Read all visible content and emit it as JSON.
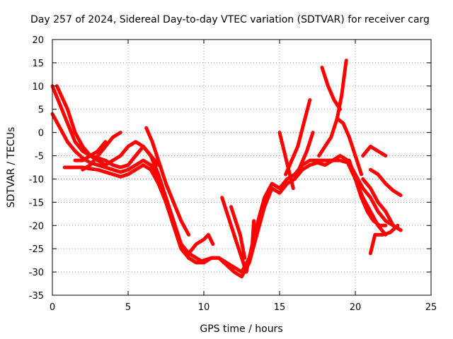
{
  "chart_data": {
    "type": "line",
    "title": "Day 257 of 2024, Sidereal Day-to-day VTEC variation (SDTVAR) for receiver carg",
    "xlabel": "GPS time / hours",
    "ylabel": "SDTVAR / TECUs",
    "xlim": [
      0,
      25
    ],
    "ylim": [
      -35,
      20
    ],
    "xticks": [
      0,
      5,
      10,
      15,
      20,
      25
    ],
    "yticks": [
      -35,
      -30,
      -25,
      -20,
      -15,
      -10,
      -5,
      0,
      5,
      10,
      15,
      20
    ],
    "grid": true,
    "color": "#ff0000",
    "series": [
      {
        "name": "s1",
        "x": [
          0.0,
          0.5,
          1.0,
          1.5,
          2.0,
          2.5,
          3.0,
          3.5,
          4.0,
          4.5,
          5.0,
          5.5,
          6.0,
          6.5,
          7.0,
          7.5,
          8.0,
          8.5,
          9.0,
          9.5,
          10.0,
          10.5,
          11.0,
          11.5,
          12.0,
          12.5,
          13.0,
          13.5,
          14.0,
          14.5,
          15.0,
          15.5,
          16.0,
          16.5,
          17.0,
          17.5,
          18.0,
          18.5,
          19.0,
          19.5,
          20.0,
          20.5,
          21.0,
          21.5,
          22.0,
          22.5,
          23.0
        ],
        "y": [
          10,
          6,
          2,
          -2,
          -4,
          -5,
          -5.5,
          -6,
          -7,
          -7.5,
          -7,
          -5,
          -3,
          -5,
          -9,
          -14,
          -19,
          -24,
          -27,
          -28,
          -27.5,
          -27,
          -27,
          -28,
          -29,
          -30,
          -27,
          -20,
          -14,
          -11,
          -12,
          -10,
          -9,
          -7,
          -6,
          -6,
          -6,
          -6,
          -5,
          -6,
          -9,
          -12,
          -14,
          -17,
          -19,
          -20,
          -21
        ]
      },
      {
        "name": "s2",
        "x": [
          0.0,
          0.5,
          1.0,
          1.5,
          2.0,
          2.5,
          3.0,
          3.5,
          4.0,
          4.5,
          5.0,
          5.5,
          6.0,
          6.5,
          7.0,
          7.5,
          8.0,
          8.5,
          9.0,
          9.5,
          10.0,
          10.5,
          11.0,
          11.5,
          12.0,
          12.5,
          13.0,
          13.5,
          14.0,
          14.5,
          15.0,
          15.5,
          16.0,
          16.5,
          17.0,
          17.5,
          18.0,
          18.5,
          19.0,
          19.5,
          20.0,
          20.5,
          21.0,
          21.5,
          22.0
        ],
        "y": [
          4,
          1,
          -2,
          -4,
          -5.5,
          -6.5,
          -7,
          -7.5,
          -8,
          -8.5,
          -8,
          -7,
          -6,
          -7,
          -10,
          -15,
          -20,
          -25,
          -27,
          -28,
          -28,
          -27,
          -27,
          -28.5,
          -30,
          -31,
          -28,
          -22,
          -16,
          -12,
          -13,
          -11,
          -10,
          -8,
          -7,
          -6.5,
          -7,
          -6,
          -6,
          -6.5,
          -10,
          -14,
          -17,
          -20,
          -22
        ]
      },
      {
        "name": "s3",
        "x": [
          0.8,
          1.5,
          2.0,
          2.5,
          3.0,
          3.5,
          4.0,
          4.5,
          5.0,
          5.5,
          6.0,
          6.5,
          7.0,
          7.5,
          8.0,
          8.5,
          9.0,
          9.5,
          10.0
        ],
        "y": [
          -7.5,
          -7.5,
          -7.5,
          -7.8,
          -8,
          -8.5,
          -9,
          -9.5,
          -9,
          -8,
          -7,
          -8,
          -11,
          -15,
          -20,
          -24,
          -26,
          -27,
          -28
        ]
      },
      {
        "name": "s4",
        "x": [
          0.3,
          1.0,
          1.5,
          2.0,
          2.5,
          3.0,
          3.5,
          4.0,
          4.5,
          5.0,
          5.5,
          6.0,
          6.5,
          7.0
        ],
        "y": [
          10,
          5,
          0,
          -3,
          -5,
          -6,
          -7,
          -6,
          -5,
          -3,
          -2,
          -3,
          -5,
          -7
        ]
      },
      {
        "name": "s5",
        "x": [
          6.2,
          6.6,
          7.0,
          7.5,
          8.0,
          8.5,
          9.0
        ],
        "y": [
          1,
          -2,
          -6,
          -11,
          -15,
          -19,
          -22
        ]
      },
      {
        "name": "s6",
        "x": [
          2.0,
          2.5,
          3.0,
          3.5,
          4.0,
          4.5
        ],
        "y": [
          -8,
          -7,
          -5,
          -3,
          -1,
          0
        ]
      },
      {
        "name": "s7",
        "x": [
          1.5,
          2.0,
          2.5,
          3.0,
          3.5
        ],
        "y": [
          -6,
          -6,
          -5,
          -4,
          -2
        ]
      },
      {
        "name": "s8",
        "x": [
          9.0,
          9.5,
          10.0,
          10.3,
          10.6
        ],
        "y": [
          -26,
          -24,
          -23,
          -22,
          -24
        ]
      },
      {
        "name": "s9",
        "x": [
          11.2,
          11.5,
          11.8,
          12.1,
          12.4,
          12.7
        ],
        "y": [
          -14,
          -17,
          -20,
          -23,
          -26,
          -29
        ]
      },
      {
        "name": "s10",
        "x": [
          11.8,
          12.1,
          12.4,
          12.7
        ],
        "y": [
          -16,
          -19,
          -22,
          -27
        ]
      },
      {
        "name": "s11",
        "x": [
          12.8,
          13.0,
          13.2,
          13.3
        ],
        "y": [
          -30,
          -27,
          -24,
          -19
        ]
      },
      {
        "name": "s12",
        "x": [
          15.0,
          15.3,
          15.6,
          15.9
        ],
        "y": [
          0,
          -4,
          -8,
          -12
        ]
      },
      {
        "name": "s13",
        "x": [
          15.4,
          15.8,
          16.2,
          16.6,
          17.0
        ],
        "y": [
          -9,
          -6,
          -3,
          2,
          7
        ]
      },
      {
        "name": "s14",
        "x": [
          16.0,
          16.4,
          16.8,
          17.2
        ],
        "y": [
          -10,
          -7,
          -4,
          0
        ]
      },
      {
        "name": "s15",
        "x": [
          17.8,
          18.2,
          18.6,
          19.0
        ],
        "y": [
          14,
          10,
          7,
          5
        ]
      },
      {
        "name": "s16",
        "x": [
          17.6,
          18.0,
          18.4,
          18.8,
          19.1,
          19.4
        ],
        "y": [
          -5,
          -3,
          -1,
          3,
          8,
          15.5
        ]
      },
      {
        "name": "s17",
        "x": [
          18.8,
          19.2,
          19.6,
          20.0,
          20.4
        ],
        "y": [
          3,
          2,
          -1,
          -5,
          -9
        ]
      },
      {
        "name": "s18",
        "x": [
          19.6,
          20.0,
          20.4,
          20.8,
          21.2,
          21.6,
          22.0
        ],
        "y": [
          -6,
          -10,
          -14,
          -17,
          -19,
          -20,
          -20
        ]
      },
      {
        "name": "s19",
        "x": [
          20.5,
          21.0,
          21.5,
          22.0
        ],
        "y": [
          -5,
          -3,
          -4,
          -5
        ]
      },
      {
        "name": "s20",
        "x": [
          21.0,
          21.3,
          21.8,
          22.3,
          22.8
        ],
        "y": [
          -26,
          -22,
          -22,
          -21.5,
          -20
        ]
      },
      {
        "name": "s21",
        "x": [
          21.0,
          21.5,
          22.0,
          22.5,
          23.0
        ],
        "y": [
          -8,
          -9,
          -11,
          -12.5,
          -13.5
        ]
      },
      {
        "name": "s22",
        "x": [
          20.5,
          21.0,
          21.5,
          22.0,
          22.5,
          23.0
        ],
        "y": [
          -10,
          -12,
          -15,
          -17,
          -20,
          -21
        ]
      }
    ]
  }
}
